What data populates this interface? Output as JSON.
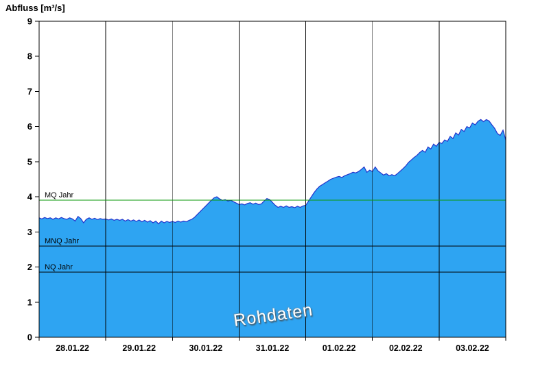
{
  "chart_data": {
    "type": "area",
    "title": "Abfluss [m³/s]",
    "watermark": "Rohdaten",
    "x_unit": "hours since 28.01.22 00:00",
    "x_range": [
      0,
      168
    ],
    "ylim": [
      0,
      9
    ],
    "y_ticks": [
      0,
      1,
      2,
      3,
      4,
      5,
      6,
      7,
      8,
      9
    ],
    "x_day_labels": [
      "28.01.22",
      "29.01.22",
      "30.01.22",
      "31.01.22",
      "01.02.22",
      "02.02.22",
      "03.02.22"
    ],
    "day_boundaries_hours": [
      24,
      48,
      72,
      96,
      120,
      144
    ],
    "grid": "vertical-day-lines-only",
    "legend_position": "none",
    "reference_lines": [
      {
        "label": "MQ Jahr",
        "value": 3.9,
        "color": "#0a9a0a"
      },
      {
        "label": "MNQ Jahr",
        "value": 2.6,
        "color": "#000000"
      },
      {
        "label": "NQ Jahr",
        "value": 1.85,
        "color": "#000000"
      }
    ],
    "colors": {
      "fill": "#2ea4f2",
      "line": "#2233cc",
      "axis": "#000000"
    },
    "series": [
      {
        "name": "Abfluss Rohdaten",
        "points": [
          [
            0,
            3.4
          ],
          [
            1,
            3.37
          ],
          [
            2,
            3.41
          ],
          [
            3,
            3.38
          ],
          [
            4,
            3.4
          ],
          [
            5,
            3.36
          ],
          [
            6,
            3.4
          ],
          [
            7,
            3.37
          ],
          [
            8,
            3.41
          ],
          [
            9,
            3.38
          ],
          [
            10,
            3.36
          ],
          [
            11,
            3.4
          ],
          [
            12,
            3.37
          ],
          [
            13,
            3.31
          ],
          [
            14,
            3.44
          ],
          [
            15,
            3.38
          ],
          [
            16,
            3.26
          ],
          [
            17,
            3.36
          ],
          [
            18,
            3.4
          ],
          [
            19,
            3.36
          ],
          [
            20,
            3.39
          ],
          [
            21,
            3.35
          ],
          [
            22,
            3.38
          ],
          [
            23,
            3.36
          ],
          [
            24,
            3.37
          ],
          [
            25,
            3.34
          ],
          [
            26,
            3.37
          ],
          [
            27,
            3.33
          ],
          [
            28,
            3.36
          ],
          [
            29,
            3.33
          ],
          [
            30,
            3.36
          ],
          [
            31,
            3.31
          ],
          [
            32,
            3.35
          ],
          [
            33,
            3.31
          ],
          [
            34,
            3.34
          ],
          [
            35,
            3.3
          ],
          [
            36,
            3.34
          ],
          [
            37,
            3.29
          ],
          [
            38,
            3.33
          ],
          [
            39,
            3.28
          ],
          [
            40,
            3.32
          ],
          [
            41,
            3.26
          ],
          [
            42,
            3.31
          ],
          [
            43,
            3.23
          ],
          [
            44,
            3.31
          ],
          [
            45,
            3.26
          ],
          [
            46,
            3.3
          ],
          [
            47,
            3.27
          ],
          [
            48,
            3.3
          ],
          [
            49,
            3.27
          ],
          [
            50,
            3.31
          ],
          [
            51,
            3.28
          ],
          [
            52,
            3.31
          ],
          [
            53,
            3.29
          ],
          [
            54,
            3.33
          ],
          [
            55,
            3.36
          ],
          [
            56,
            3.42
          ],
          [
            57,
            3.5
          ],
          [
            58,
            3.58
          ],
          [
            59,
            3.66
          ],
          [
            60,
            3.74
          ],
          [
            61,
            3.82
          ],
          [
            62,
            3.9
          ],
          [
            63,
            3.97
          ],
          [
            64,
            4.0
          ],
          [
            65,
            3.94
          ],
          [
            66,
            3.9
          ],
          [
            67,
            3.92
          ],
          [
            68,
            3.88
          ],
          [
            69,
            3.9
          ],
          [
            70,
            3.86
          ],
          [
            71,
            3.82
          ],
          [
            72,
            3.78
          ],
          [
            73,
            3.8
          ],
          [
            74,
            3.77
          ],
          [
            75,
            3.81
          ],
          [
            76,
            3.83
          ],
          [
            77,
            3.79
          ],
          [
            78,
            3.82
          ],
          [
            79,
            3.78
          ],
          [
            80,
            3.8
          ],
          [
            81,
            3.88
          ],
          [
            82,
            3.95
          ],
          [
            83,
            3.92
          ],
          [
            84,
            3.84
          ],
          [
            85,
            3.76
          ],
          [
            86,
            3.7
          ],
          [
            87,
            3.73
          ],
          [
            88,
            3.7
          ],
          [
            89,
            3.74
          ],
          [
            90,
            3.7
          ],
          [
            91,
            3.72
          ],
          [
            92,
            3.69
          ],
          [
            93,
            3.73
          ],
          [
            94,
            3.7
          ],
          [
            95,
            3.74
          ],
          [
            96,
            3.76
          ],
          [
            97,
            3.88
          ],
          [
            98,
            4.0
          ],
          [
            99,
            4.12
          ],
          [
            100,
            4.22
          ],
          [
            101,
            4.3
          ],
          [
            102,
            4.35
          ],
          [
            103,
            4.4
          ],
          [
            104,
            4.45
          ],
          [
            105,
            4.5
          ],
          [
            106,
            4.53
          ],
          [
            107,
            4.56
          ],
          [
            108,
            4.58
          ],
          [
            109,
            4.55
          ],
          [
            110,
            4.6
          ],
          [
            111,
            4.63
          ],
          [
            112,
            4.66
          ],
          [
            113,
            4.7
          ],
          [
            114,
            4.68
          ],
          [
            115,
            4.72
          ],
          [
            116,
            4.78
          ],
          [
            117,
            4.85
          ],
          [
            118,
            4.7
          ],
          [
            119,
            4.76
          ],
          [
            120,
            4.72
          ],
          [
            121,
            4.85
          ],
          [
            122,
            4.74
          ],
          [
            123,
            4.68
          ],
          [
            124,
            4.62
          ],
          [
            125,
            4.66
          ],
          [
            126,
            4.6
          ],
          [
            127,
            4.63
          ],
          [
            128,
            4.6
          ],
          [
            129,
            4.66
          ],
          [
            130,
            4.73
          ],
          [
            131,
            4.8
          ],
          [
            132,
            4.88
          ],
          [
            133,
            4.98
          ],
          [
            134,
            5.05
          ],
          [
            135,
            5.12
          ],
          [
            136,
            5.18
          ],
          [
            137,
            5.26
          ],
          [
            138,
            5.32
          ],
          [
            139,
            5.27
          ],
          [
            140,
            5.42
          ],
          [
            141,
            5.36
          ],
          [
            142,
            5.5
          ],
          [
            143,
            5.44
          ],
          [
            144,
            5.55
          ],
          [
            145,
            5.52
          ],
          [
            146,
            5.62
          ],
          [
            147,
            5.58
          ],
          [
            148,
            5.72
          ],
          [
            149,
            5.66
          ],
          [
            150,
            5.82
          ],
          [
            151,
            5.76
          ],
          [
            152,
            5.92
          ],
          [
            153,
            5.86
          ],
          [
            154,
            6.0
          ],
          [
            155,
            5.96
          ],
          [
            156,
            6.1
          ],
          [
            157,
            6.05
          ],
          [
            158,
            6.15
          ],
          [
            159,
            6.2
          ],
          [
            160,
            6.14
          ],
          [
            161,
            6.2
          ],
          [
            162,
            6.16
          ],
          [
            163,
            6.05
          ],
          [
            164,
            5.95
          ],
          [
            165,
            5.8
          ],
          [
            166,
            5.75
          ],
          [
            167,
            5.9
          ],
          [
            168,
            5.62
          ]
        ]
      }
    ]
  }
}
